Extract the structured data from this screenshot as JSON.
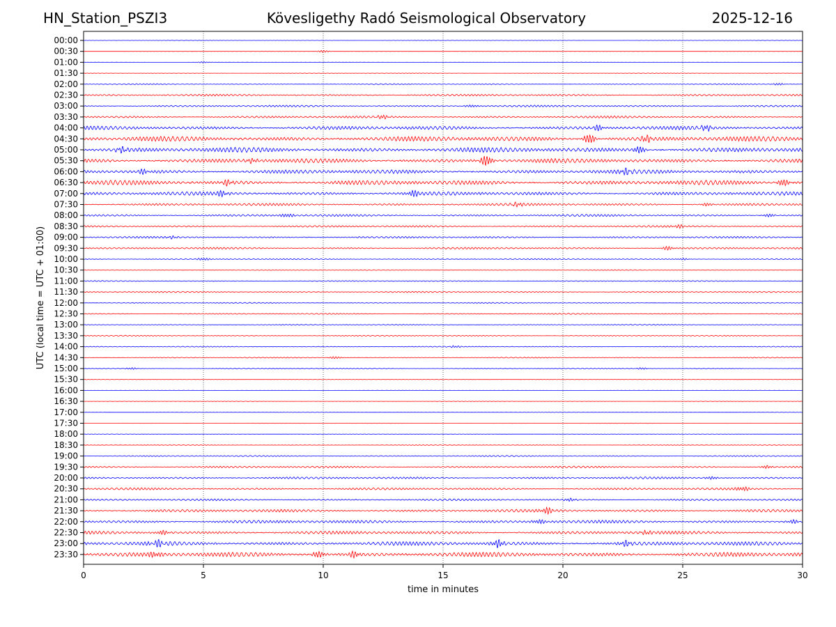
{
  "header": {
    "left": "HN_Station_PSZI3",
    "center": "Kövesligethy Radó Seismological Observatory",
    "right": "2025-12-16"
  },
  "chart_data": {
    "type": "line",
    "title": "Kövesligethy Radó Seismological Observatory",
    "xlabel": "time in minutes",
    "ylabel": "UTC (local time = UTC + 01:00)",
    "xlim": [
      0,
      30
    ],
    "xticks": [
      0,
      5,
      10,
      15,
      20,
      25,
      30
    ],
    "grid": "vertical dotted at 5, 10, 15, 20, 25",
    "colors": {
      "even_rows": "#0000ff",
      "odd_rows": "#ff0000"
    },
    "rows": [
      {
        "label": "00:00",
        "amp": 0.05
      },
      {
        "label": "00:30",
        "amp": 0.04,
        "events": [
          {
            "t": 10.0,
            "a": 0.35
          }
        ]
      },
      {
        "label": "01:00",
        "amp": 0.05,
        "events": [
          {
            "t": 5.0,
            "a": 0.2
          }
        ]
      },
      {
        "label": "01:30",
        "amp": 0.06
      },
      {
        "label": "02:00",
        "amp": 0.15,
        "events": [
          {
            "t": 29.0,
            "a": 0.35
          }
        ]
      },
      {
        "label": "02:30",
        "amp": 0.3
      },
      {
        "label": "03:00",
        "amp": 0.3,
        "events": [
          {
            "t": 16.2,
            "a": 0.45
          }
        ]
      },
      {
        "label": "03:30",
        "amp": 0.35,
        "events": [
          {
            "t": 12.5,
            "a": 0.6
          }
        ]
      },
      {
        "label": "04:00",
        "amp": 0.6,
        "events": [
          {
            "t": 21.5,
            "a": 0.9
          },
          {
            "t": 26.0,
            "a": 0.8
          }
        ]
      },
      {
        "label": "04:30",
        "amp": 0.8,
        "events": [
          {
            "t": 21.1,
            "a": 1.5
          },
          {
            "t": 23.5,
            "a": 1.0
          }
        ]
      },
      {
        "label": "05:00",
        "amp": 0.8,
        "events": [
          {
            "t": 23.2,
            "a": 1.1
          },
          {
            "t": 1.6,
            "a": 0.8
          }
        ]
      },
      {
        "label": "05:30",
        "amp": 0.7,
        "events": [
          {
            "t": 16.8,
            "a": 1.6
          },
          {
            "t": 7.0,
            "a": 0.7
          }
        ]
      },
      {
        "label": "06:00",
        "amp": 0.65,
        "events": [
          {
            "t": 22.6,
            "a": 0.9
          },
          {
            "t": 2.5,
            "a": 0.7
          }
        ]
      },
      {
        "label": "06:30",
        "amp": 0.75,
        "events": [
          {
            "t": 29.2,
            "a": 1.1
          },
          {
            "t": 6.0,
            "a": 0.8
          }
        ]
      },
      {
        "label": "07:00",
        "amp": 0.6,
        "events": [
          {
            "t": 13.7,
            "a": 1.0
          },
          {
            "t": 5.8,
            "a": 0.8
          }
        ]
      },
      {
        "label": "07:30",
        "amp": 0.4,
        "events": [
          {
            "t": 18.1,
            "a": 0.6
          },
          {
            "t": 26.0,
            "a": 0.5
          }
        ]
      },
      {
        "label": "08:00",
        "amp": 0.35,
        "events": [
          {
            "t": 8.5,
            "a": 0.6
          },
          {
            "t": 28.6,
            "a": 0.5
          }
        ]
      },
      {
        "label": "08:30",
        "amp": 0.3,
        "events": [
          {
            "t": 24.8,
            "a": 0.5
          }
        ]
      },
      {
        "label": "09:00",
        "amp": 0.3,
        "events": [
          {
            "t": 3.7,
            "a": 0.4
          }
        ]
      },
      {
        "label": "09:30",
        "amp": 0.3,
        "events": [
          {
            "t": 24.4,
            "a": 0.6
          }
        ]
      },
      {
        "label": "10:00",
        "amp": 0.18,
        "events": [
          {
            "t": 5.0,
            "a": 0.4
          },
          {
            "t": 25.0,
            "a": 0.3
          }
        ]
      },
      {
        "label": "10:30",
        "amp": 0.12
      },
      {
        "label": "11:00",
        "amp": 0.15
      },
      {
        "label": "11:30",
        "amp": 0.2
      },
      {
        "label": "12:00",
        "amp": 0.15
      },
      {
        "label": "12:30",
        "amp": 0.18
      },
      {
        "label": "13:00",
        "amp": 0.15
      },
      {
        "label": "13:30",
        "amp": 0.15
      },
      {
        "label": "14:00",
        "amp": 0.15,
        "events": [
          {
            "t": 15.5,
            "a": 0.3
          }
        ]
      },
      {
        "label": "14:30",
        "amp": 0.15,
        "events": [
          {
            "t": 10.5,
            "a": 0.4
          }
        ]
      },
      {
        "label": "15:00",
        "amp": 0.12,
        "events": [
          {
            "t": 2.0,
            "a": 0.3
          },
          {
            "t": 23.3,
            "a": 0.3
          }
        ]
      },
      {
        "label": "15:30",
        "amp": 0.08
      },
      {
        "label": "16:00",
        "amp": 0.06
      },
      {
        "label": "16:30",
        "amp": 0.06
      },
      {
        "label": "17:00",
        "amp": 0.06
      },
      {
        "label": "17:30",
        "amp": 0.06
      },
      {
        "label": "18:00",
        "amp": 0.06
      },
      {
        "label": "18:30",
        "amp": 0.1
      },
      {
        "label": "19:00",
        "amp": 0.2
      },
      {
        "label": "19:30",
        "amp": 0.3,
        "events": [
          {
            "t": 28.5,
            "a": 0.5
          }
        ]
      },
      {
        "label": "20:00",
        "amp": 0.35,
        "events": [
          {
            "t": 26.2,
            "a": 0.5
          }
        ]
      },
      {
        "label": "20:30",
        "amp": 0.35,
        "events": [
          {
            "t": 27.5,
            "a": 0.7
          }
        ]
      },
      {
        "label": "21:00",
        "amp": 0.3,
        "events": [
          {
            "t": 20.3,
            "a": 0.5
          }
        ]
      },
      {
        "label": "21:30",
        "amp": 0.45,
        "events": [
          {
            "t": 19.3,
            "a": 1.0
          }
        ]
      },
      {
        "label": "22:00",
        "amp": 0.5,
        "events": [
          {
            "t": 19.0,
            "a": 0.7
          },
          {
            "t": 29.6,
            "a": 0.6
          }
        ]
      },
      {
        "label": "22:30",
        "amp": 0.5,
        "events": [
          {
            "t": 3.3,
            "a": 0.7
          },
          {
            "t": 23.5,
            "a": 0.6
          }
        ]
      },
      {
        "label": "23:00",
        "amp": 0.65,
        "events": [
          {
            "t": 17.3,
            "a": 1.2
          },
          {
            "t": 3.1,
            "a": 0.9
          },
          {
            "t": 22.6,
            "a": 0.9
          }
        ]
      },
      {
        "label": "23:30",
        "amp": 0.75,
        "events": [
          {
            "t": 9.8,
            "a": 1.1
          },
          {
            "t": 11.3,
            "a": 0.9
          },
          {
            "t": 3.0,
            "a": 0.9
          }
        ]
      }
    ]
  }
}
